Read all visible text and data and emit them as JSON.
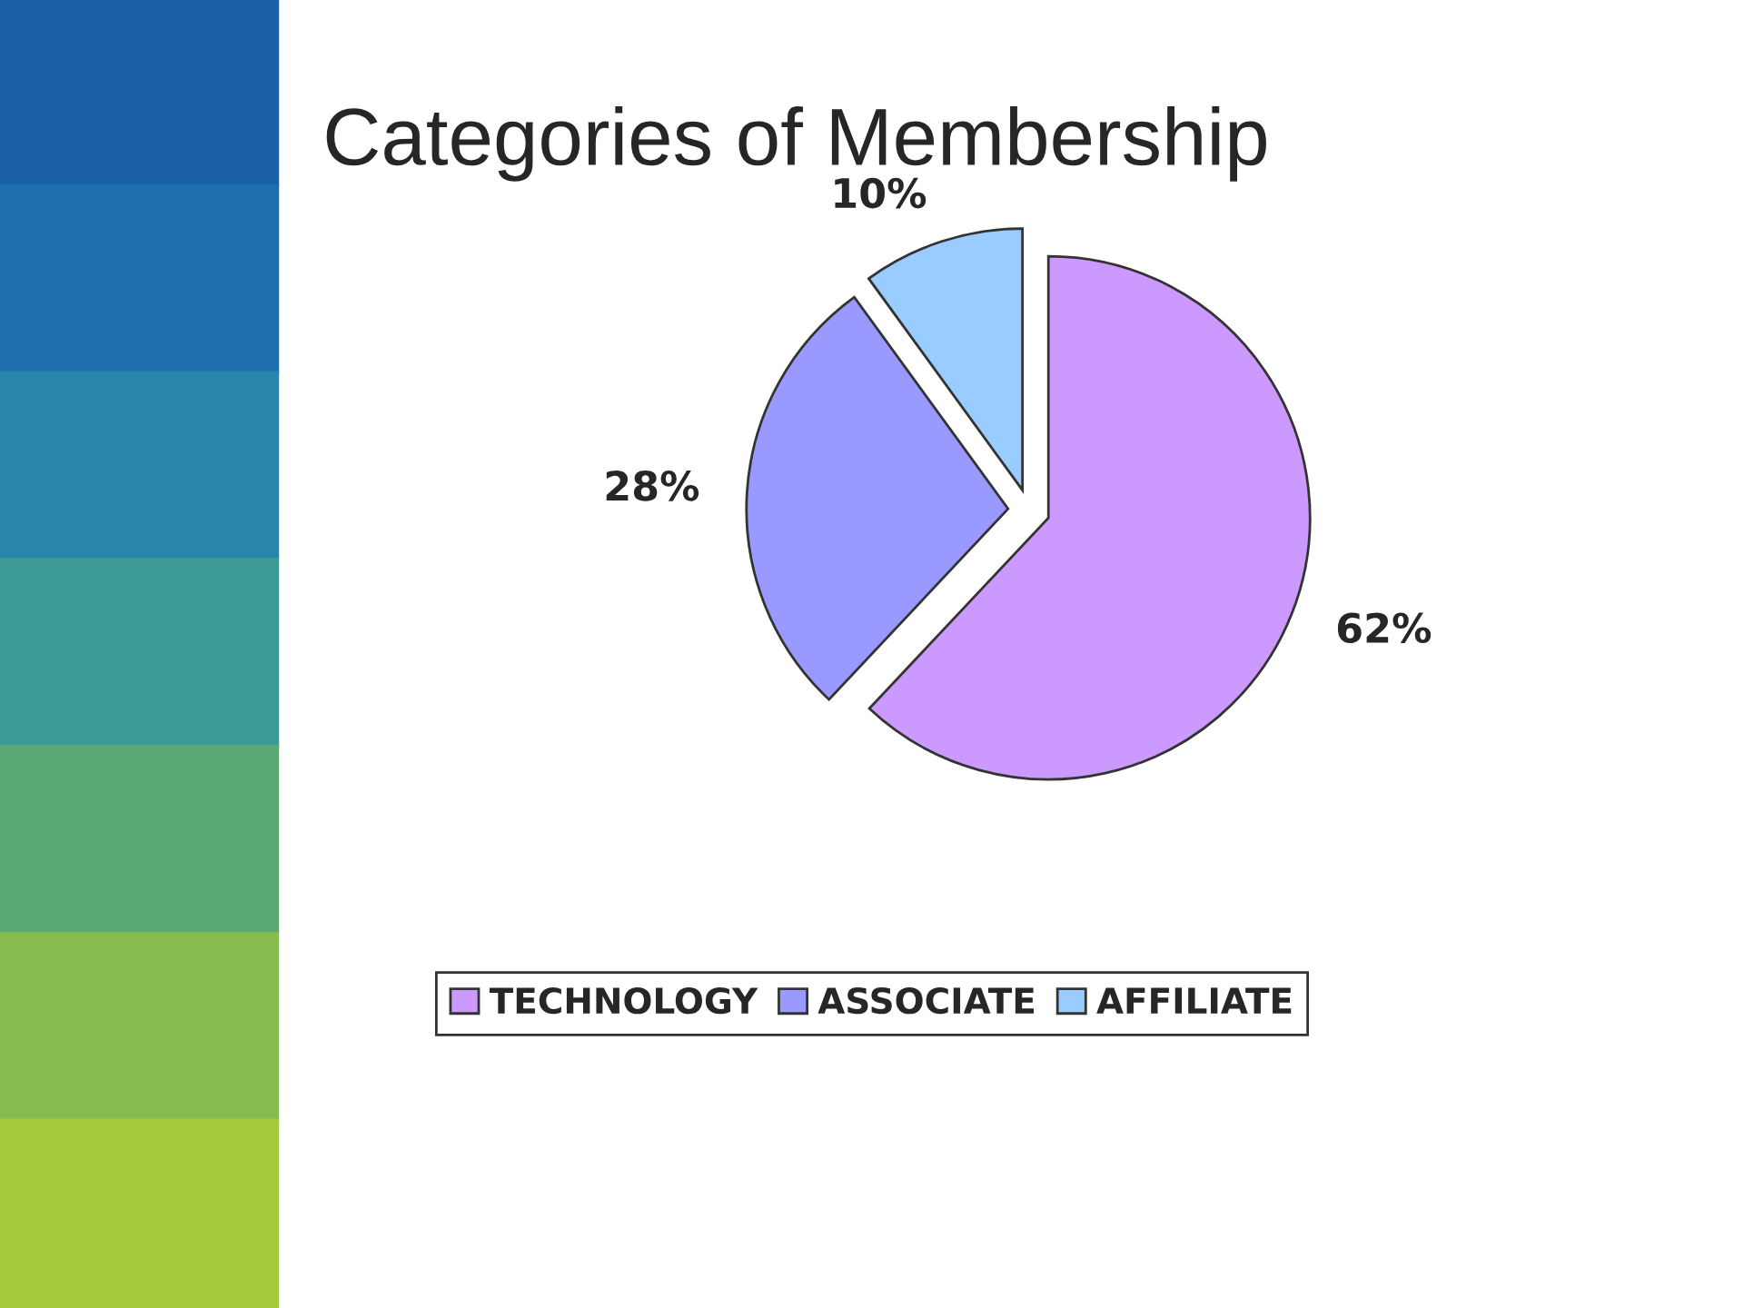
{
  "chart_data": {
    "type": "pie",
    "title": "Categories of Membership",
    "categories": [
      "TECHNOLOGY",
      "ASSOCIATE",
      "AFFILIATE"
    ],
    "values": [
      62,
      28,
      10
    ],
    "colors": [
      "#cc99ff",
      "#9999ff",
      "#99ccff"
    ],
    "value_labels": [
      "62%",
      "28%",
      "10%"
    ],
    "legend": "bottom"
  }
}
